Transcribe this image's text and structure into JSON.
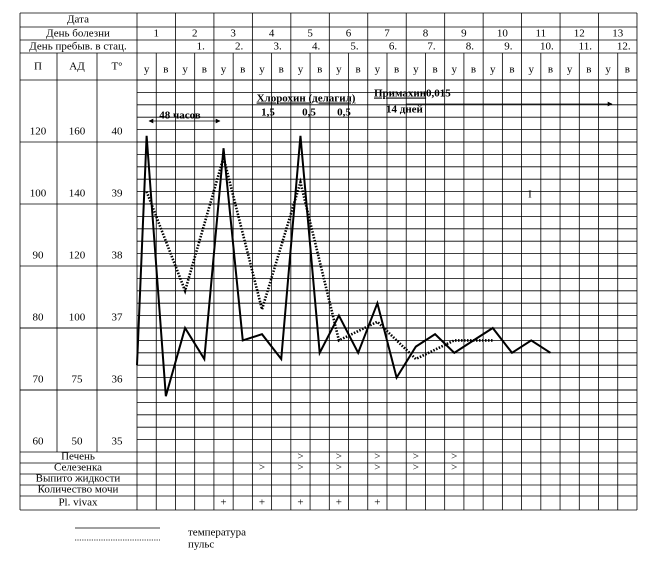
{
  "header": {
    "date_label": "Дата",
    "disease_day_label": "День болезни",
    "disease_days": [
      1,
      2,
      3,
      4,
      5,
      6,
      7,
      8,
      9,
      10,
      11,
      12,
      13
    ],
    "stay_day_label": "День пребыв. в стац.",
    "stay_days": [
      "1.",
      "2.",
      "3.",
      "4.",
      "5.",
      "6.",
      "7.",
      "8.",
      "9.",
      "10.",
      "11.",
      "12."
    ],
    "pulse_label": "П",
    "bp_label": "АД",
    "temp_label": "Т°",
    "shift_labels": [
      "у",
      "в"
    ]
  },
  "scales": {
    "pulse": [
      120,
      100,
      90,
      80,
      70,
      60
    ],
    "bp": [
      160,
      140,
      120,
      100,
      75,
      50
    ]
  },
  "chart_data": {
    "type": "line",
    "ylim": [
      35,
      41
    ],
    "yticks": [
      40,
      39,
      38,
      37,
      36,
      35
    ],
    "reference_lines": [
      {
        "value": 37,
        "color": "#e01010"
      },
      {
        "value": 36,
        "color": "#000000"
      }
    ],
    "series": [
      {
        "name": "температура",
        "color": "#000000",
        "style": "solid",
        "x": [
          0,
          0.5,
          1.5,
          2.5,
          3.5,
          4.5,
          5.5,
          6.5,
          7.5,
          8.5,
          9.5,
          10.5,
          11.5,
          12.5,
          13.5,
          14.5,
          15.5,
          16.5,
          17.5,
          18.5,
          19.5,
          20.5,
          21.5
        ],
        "values": [
          36.4,
          40.1,
          35.9,
          37.0,
          36.5,
          39.9,
          36.8,
          36.9,
          36.5,
          40.1,
          36.6,
          37.2,
          36.6,
          37.4,
          36.2,
          36.7,
          36.9,
          36.6,
          36.8,
          37.0,
          36.6,
          36.8,
          36.6
        ]
      },
      {
        "name": "пульс",
        "color": "#000000",
        "style": "dotted",
        "scale": "pulse",
        "x": [
          0.5,
          2.5,
          4.5,
          6.5,
          8.5,
          10.5,
          12.5,
          14.5,
          16.5,
          18.5
        ],
        "values": [
          104,
          86,
          115,
          83,
          107,
          78,
          81,
          75,
          78,
          78
        ]
      }
    ],
    "annotations": {
      "interval": "48 часов",
      "drug1": "Хлорохин (делагил)",
      "drug1_doses": [
        "1,5",
        "0,5",
        "0,5"
      ],
      "drug2": "Примахин",
      "drug2_dose": "0,015",
      "drug2_duration": "14 дней",
      "mark": "I"
    }
  },
  "rows": [
    {
      "label": "Печень",
      "cells": [
        null,
        null,
        null,
        null,
        null,
        null,
        null,
        null,
        ">",
        null,
        ">",
        null,
        ">",
        null,
        ">",
        null,
        ">",
        null,
        null,
        null,
        null,
        null,
        null,
        null,
        null,
        null
      ]
    },
    {
      "label": "Селезенка",
      "cells": [
        null,
        null,
        null,
        null,
        null,
        null,
        ">",
        null,
        ">",
        null,
        ">",
        null,
        ">",
        null,
        ">",
        null,
        ">",
        null,
        null,
        null,
        null,
        null,
        null,
        null,
        null,
        null
      ]
    },
    {
      "label": "Выпито жидкости",
      "cells": [
        null,
        null,
        null,
        null,
        null,
        null,
        null,
        null,
        null,
        null,
        null,
        null,
        null,
        null,
        null,
        null,
        null,
        null,
        null,
        null,
        null,
        null,
        null,
        null,
        null,
        null
      ]
    },
    {
      "label": "Количество мочи",
      "cells": [
        null,
        null,
        null,
        null,
        null,
        null,
        null,
        null,
        null,
        null,
        null,
        null,
        null,
        null,
        null,
        null,
        null,
        null,
        null,
        null,
        null,
        null,
        null,
        null,
        null,
        null
      ]
    },
    {
      "label": "Pl. vivax",
      "cells": [
        null,
        null,
        null,
        null,
        "+",
        null,
        "+",
        null,
        "+",
        null,
        "+",
        null,
        "+",
        null,
        null,
        null,
        null,
        null,
        null,
        null,
        null,
        null,
        null,
        null,
        null,
        null
      ]
    }
  ]
}
